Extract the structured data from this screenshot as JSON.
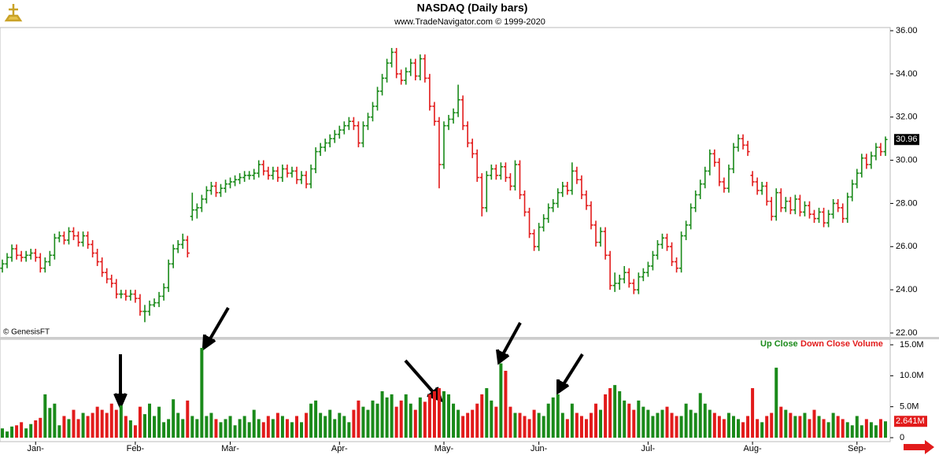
{
  "chart_data": {
    "type": "ohlc",
    "title": "NASDAQ  (Daily bars)",
    "subtitle": "www.TradeNavigator.com © 1999-2020",
    "watermark": "© GenesisFT",
    "up_color": "#1a8a1a",
    "down_color": "#e21b1b",
    "legend": [
      "Up Close",
      "Down Close",
      "Volume"
    ],
    "ylim": [
      22,
      36
    ],
    "yticks": [
      {
        "value": 22,
        "label": "22.00"
      },
      {
        "value": 24,
        "label": "24.00"
      },
      {
        "value": 26,
        "label": "26.00"
      },
      {
        "value": 28,
        "label": "28.00"
      },
      {
        "value": 30,
        "label": "30.00"
      },
      {
        "value": 32,
        "label": "32.00"
      },
      {
        "value": 34,
        "label": "34.00"
      },
      {
        "value": 36,
        "label": "36.00"
      }
    ],
    "last_price_label": "30.96",
    "y2lim": [
      0,
      15
    ],
    "y2ticks": [
      {
        "value": 0,
        "label": "0"
      },
      {
        "value": 5,
        "label": "5.0M"
      },
      {
        "value": 10,
        "label": "10.0M"
      },
      {
        "value": 15,
        "label": "15.0M"
      }
    ],
    "last_volume_label": "2.641M",
    "xticks": [
      {
        "value": 7,
        "label": "Jan-"
      },
      {
        "value": 28,
        "label": "Feb-"
      },
      {
        "value": 48,
        "label": "Mar-"
      },
      {
        "value": 71,
        "label": "Apr-"
      },
      {
        "value": 93,
        "label": "May-"
      },
      {
        "value": 113,
        "label": "Jun-"
      },
      {
        "value": 136,
        "label": "Jul-"
      },
      {
        "value": 158,
        "label": "Aug-"
      },
      {
        "value": 180,
        "label": "Sep-"
      }
    ],
    "bars": [
      [
        25.0,
        25.4,
        24.8,
        25.2
      ],
      [
        25.2,
        25.7,
        25.0,
        25.5
      ],
      [
        25.5,
        26.1,
        25.3,
        25.9
      ],
      [
        25.9,
        26.1,
        25.4,
        25.6
      ],
      [
        25.6,
        25.8,
        25.3,
        25.5
      ],
      [
        25.5,
        25.8,
        25.3,
        25.6
      ],
      [
        25.6,
        25.9,
        25.4,
        25.7
      ],
      [
        25.7,
        25.9,
        25.3,
        25.5
      ],
      [
        25.5,
        25.7,
        24.8,
        25.0
      ],
      [
        25.0,
        25.5,
        24.8,
        25.3
      ],
      [
        25.3,
        25.8,
        25.1,
        25.6
      ],
      [
        25.6,
        26.6,
        25.4,
        26.4
      ],
      [
        26.4,
        26.7,
        26.2,
        26.5
      ],
      [
        26.5,
        26.7,
        26.1,
        26.3
      ],
      [
        26.3,
        26.9,
        26.1,
        26.7
      ],
      [
        26.7,
        26.9,
        26.3,
        26.5
      ],
      [
        26.5,
        26.7,
        26.0,
        26.2
      ],
      [
        26.2,
        26.7,
        26.0,
        26.5
      ],
      [
        26.5,
        26.7,
        25.9,
        26.1
      ],
      [
        26.1,
        26.3,
        25.5,
        25.7
      ],
      [
        25.7,
        25.9,
        25.1,
        25.3
      ],
      [
        25.3,
        25.5,
        24.6,
        24.8
      ],
      [
        24.8,
        25.0,
        24.3,
        24.5
      ],
      [
        24.5,
        24.7,
        24.1,
        24.3
      ],
      [
        24.3,
        24.5,
        23.6,
        23.8
      ],
      [
        23.8,
        24.0,
        23.6,
        23.8
      ],
      [
        23.8,
        24.0,
        23.5,
        23.7
      ],
      [
        23.7,
        24.0,
        23.5,
        23.8
      ],
      [
        23.8,
        24.0,
        23.4,
        23.6
      ],
      [
        23.6,
        23.8,
        22.8,
        23.0
      ],
      [
        23.0,
        23.3,
        22.5,
        23.0
      ],
      [
        23.0,
        23.5,
        22.8,
        23.3
      ],
      [
        23.3,
        23.6,
        23.2,
        23.4
      ],
      [
        23.4,
        23.9,
        23.2,
        23.7
      ],
      [
        23.7,
        24.3,
        23.5,
        24.1
      ],
      [
        24.1,
        25.4,
        23.9,
        25.2
      ],
      [
        25.2,
        26.1,
        25.0,
        25.9
      ],
      [
        25.9,
        26.3,
        25.7,
        26.1
      ],
      [
        26.1,
        26.6,
        25.9,
        26.3
      ],
      [
        26.3,
        26.5,
        25.5,
        25.7
      ],
      [
        27.4,
        28.5,
        27.2,
        27.7
      ],
      [
        27.7,
        28.0,
        27.3,
        27.8
      ],
      [
        27.8,
        28.4,
        27.6,
        28.2
      ],
      [
        28.2,
        28.8,
        28.0,
        28.6
      ],
      [
        28.6,
        29.0,
        28.4,
        28.8
      ],
      [
        28.8,
        29.0,
        28.3,
        28.5
      ],
      [
        28.5,
        28.9,
        28.3,
        28.7
      ],
      [
        28.7,
        29.1,
        28.5,
        28.9
      ],
      [
        28.9,
        29.2,
        28.7,
        29.0
      ],
      [
        29.0,
        29.3,
        28.8,
        29.1
      ],
      [
        29.1,
        29.4,
        28.9,
        29.2
      ],
      [
        29.2,
        29.5,
        29.0,
        29.3
      ],
      [
        29.3,
        29.5,
        29.1,
        29.3
      ],
      [
        29.3,
        29.6,
        29.1,
        29.4
      ],
      [
        29.4,
        30.0,
        29.2,
        29.8
      ],
      [
        29.8,
        30.0,
        29.3,
        29.5
      ],
      [
        29.5,
        29.7,
        29.1,
        29.3
      ],
      [
        29.3,
        29.7,
        29.1,
        29.5
      ],
      [
        29.5,
        29.7,
        29.0,
        29.2
      ],
      [
        29.2,
        29.8,
        29.0,
        29.6
      ],
      [
        29.6,
        29.8,
        29.2,
        29.4
      ],
      [
        29.4,
        29.7,
        29.2,
        29.5
      ],
      [
        29.5,
        29.7,
        28.9,
        29.1
      ],
      [
        29.1,
        29.5,
        28.9,
        29.3
      ],
      [
        29.3,
        29.5,
        28.7,
        28.9
      ],
      [
        28.9,
        29.8,
        28.7,
        29.6
      ],
      [
        29.6,
        30.6,
        29.4,
        30.4
      ],
      [
        30.4,
        30.8,
        30.2,
        30.6
      ],
      [
        30.6,
        31.0,
        30.4,
        30.8
      ],
      [
        30.8,
        31.2,
        30.6,
        31.0
      ],
      [
        31.0,
        31.4,
        30.8,
        31.2
      ],
      [
        31.2,
        31.6,
        31.0,
        31.4
      ],
      [
        31.4,
        31.8,
        31.2,
        31.6
      ],
      [
        31.6,
        32.0,
        31.4,
        31.8
      ],
      [
        31.8,
        32.0,
        31.4,
        31.6
      ],
      [
        31.6,
        31.8,
        30.6,
        30.8
      ],
      [
        30.8,
        31.8,
        30.6,
        31.6
      ],
      [
        31.6,
        32.2,
        31.4,
        32.0
      ],
      [
        32.0,
        32.7,
        31.8,
        32.5
      ],
      [
        32.5,
        33.4,
        32.3,
        33.2
      ],
      [
        33.2,
        34.0,
        33.0,
        33.8
      ],
      [
        33.8,
        34.7,
        33.6,
        34.5
      ],
      [
        34.5,
        35.2,
        34.3,
        35.0
      ],
      [
        35.0,
        35.2,
        33.8,
        34.0
      ],
      [
        34.0,
        34.2,
        33.5,
        33.7
      ],
      [
        33.7,
        34.3,
        33.5,
        34.1
      ],
      [
        34.1,
        34.7,
        33.9,
        34.5
      ],
      [
        34.5,
        34.7,
        33.7,
        33.9
      ],
      [
        33.9,
        34.9,
        33.7,
        34.7
      ],
      [
        34.7,
        34.9,
        33.6,
        33.8
      ],
      [
        33.8,
        34.0,
        32.3,
        32.5
      ],
      [
        32.5,
        32.7,
        31.6,
        31.8
      ],
      [
        31.8,
        32.0,
        28.7,
        29.8
      ],
      [
        29.8,
        31.8,
        29.6,
        31.6
      ],
      [
        31.6,
        32.1,
        31.4,
        31.9
      ],
      [
        31.9,
        32.4,
        31.7,
        32.2
      ],
      [
        32.2,
        33.5,
        32.0,
        32.8
      ],
      [
        32.8,
        33.0,
        31.4,
        31.6
      ],
      [
        31.6,
        31.8,
        30.6,
        30.8
      ],
      [
        30.8,
        31.0,
        30.1,
        30.3
      ],
      [
        30.3,
        30.5,
        29.0,
        29.2
      ],
      [
        29.2,
        29.4,
        27.4,
        27.8
      ],
      [
        27.8,
        29.5,
        27.6,
        29.3
      ],
      [
        29.3,
        29.8,
        29.1,
        29.6
      ],
      [
        29.6,
        29.8,
        29.1,
        29.3
      ],
      [
        29.3,
        29.9,
        29.1,
        29.7
      ],
      [
        29.7,
        29.9,
        29.0,
        29.2
      ],
      [
        29.2,
        29.4,
        28.6,
        28.8
      ],
      [
        28.8,
        30.0,
        28.6,
        29.8
      ],
      [
        29.8,
        30.0,
        28.2,
        28.4
      ],
      [
        28.4,
        28.6,
        27.4,
        27.6
      ],
      [
        27.6,
        27.8,
        26.4,
        26.6
      ],
      [
        26.6,
        26.8,
        25.8,
        26.0
      ],
      [
        26.0,
        27.1,
        25.8,
        26.9
      ],
      [
        26.9,
        27.5,
        26.7,
        27.3
      ],
      [
        27.3,
        28.0,
        27.1,
        27.8
      ],
      [
        27.8,
        28.2,
        27.6,
        28.0
      ],
      [
        28.0,
        28.7,
        27.8,
        28.5
      ],
      [
        28.5,
        29.0,
        28.3,
        28.8
      ],
      [
        28.8,
        29.0,
        28.4,
        28.6
      ],
      [
        28.6,
        29.9,
        28.4,
        29.5
      ],
      [
        29.5,
        29.7,
        28.9,
        29.1
      ],
      [
        29.1,
        29.3,
        28.2,
        28.4
      ],
      [
        28.4,
        28.6,
        27.7,
        27.9
      ],
      [
        27.9,
        28.1,
        26.8,
        27.0
      ],
      [
        27.0,
        27.2,
        26.0,
        26.2
      ],
      [
        26.2,
        26.9,
        26.0,
        26.7
      ],
      [
        26.7,
        26.9,
        25.4,
        25.6
      ],
      [
        25.6,
        25.8,
        24.0,
        24.2
      ],
      [
        24.2,
        24.8,
        23.9,
        24.3
      ],
      [
        24.3,
        24.7,
        24.0,
        24.5
      ],
      [
        24.5,
        25.1,
        24.3,
        24.8
      ],
      [
        24.8,
        25.0,
        24.1,
        24.3
      ],
      [
        24.3,
        24.5,
        23.8,
        24.0
      ],
      [
        24.0,
        24.8,
        23.8,
        24.6
      ],
      [
        24.6,
        25.0,
        24.4,
        24.8
      ],
      [
        24.8,
        25.3,
        24.6,
        25.1
      ],
      [
        25.1,
        25.8,
        24.9,
        25.6
      ],
      [
        25.6,
        26.3,
        25.4,
        26.1
      ],
      [
        26.1,
        26.6,
        25.9,
        26.4
      ],
      [
        26.4,
        26.6,
        25.8,
        26.0
      ],
      [
        26.0,
        26.2,
        25.1,
        25.3
      ],
      [
        25.3,
        25.5,
        24.8,
        25.0
      ],
      [
        25.0,
        26.7,
        24.8,
        26.5
      ],
      [
        26.5,
        27.2,
        26.3,
        27.0
      ],
      [
        27.0,
        28.0,
        26.8,
        27.8
      ],
      [
        27.8,
        28.6,
        27.6,
        28.4
      ],
      [
        28.4,
        29.1,
        28.2,
        28.9
      ],
      [
        28.9,
        29.7,
        28.7,
        29.5
      ],
      [
        29.5,
        30.5,
        29.3,
        30.3
      ],
      [
        30.3,
        30.5,
        29.7,
        29.9
      ],
      [
        29.9,
        30.1,
        28.8,
        29.0
      ],
      [
        29.0,
        29.2,
        28.5,
        28.7
      ],
      [
        28.7,
        29.8,
        28.5,
        29.6
      ],
      [
        29.6,
        30.8,
        29.4,
        30.6
      ],
      [
        30.6,
        31.2,
        30.4,
        31.0
      ],
      [
        31.0,
        31.2,
        30.5,
        30.7
      ],
      [
        30.7,
        30.9,
        30.2,
        30.4
      ],
      [
        29.3,
        29.5,
        28.8,
        29.0
      ],
      [
        29.0,
        29.2,
        28.4,
        28.6
      ],
      [
        28.6,
        29.0,
        28.4,
        28.8
      ],
      [
        28.8,
        29.0,
        27.9,
        28.1
      ],
      [
        28.1,
        28.3,
        27.2,
        27.4
      ],
      [
        27.4,
        28.7,
        27.2,
        28.5
      ],
      [
        28.5,
        28.7,
        27.6,
        27.8
      ],
      [
        27.8,
        28.3,
        27.6,
        28.1
      ],
      [
        28.1,
        28.3,
        27.5,
        27.7
      ],
      [
        27.7,
        28.4,
        27.5,
        28.2
      ],
      [
        28.2,
        28.4,
        27.4,
        27.6
      ],
      [
        27.6,
        28.1,
        27.4,
        27.9
      ],
      [
        27.9,
        28.1,
        27.3,
        27.5
      ],
      [
        27.5,
        27.7,
        27.1,
        27.3
      ],
      [
        27.3,
        27.8,
        27.1,
        27.6
      ],
      [
        27.6,
        27.8,
        26.9,
        27.1
      ],
      [
        27.1,
        27.7,
        26.9,
        27.5
      ],
      [
        27.5,
        28.2,
        27.3,
        28.0
      ],
      [
        28.0,
        28.2,
        27.6,
        27.8
      ],
      [
        27.8,
        28.0,
        27.1,
        27.3
      ],
      [
        27.3,
        28.5,
        27.1,
        28.3
      ],
      [
        28.3,
        29.1,
        28.1,
        28.9
      ],
      [
        28.9,
        29.6,
        28.7,
        29.4
      ],
      [
        29.4,
        30.3,
        29.2,
        30.1
      ],
      [
        30.1,
        30.3,
        29.6,
        29.8
      ],
      [
        29.8,
        30.4,
        29.6,
        30.2
      ],
      [
        30.2,
        30.8,
        30.0,
        30.6
      ],
      [
        30.6,
        30.8,
        30.2,
        30.4
      ],
      [
        30.4,
        31.1,
        30.2,
        30.96
      ]
    ],
    "volume": [
      1.5,
      1.0,
      1.8,
      2.0,
      2.5,
      1.5,
      2.2,
      2.8,
      3.2,
      7.0,
      4.8,
      5.5,
      2.0,
      3.5,
      3.0,
      4.5,
      3.0,
      4.0,
      3.5,
      4.0,
      5.0,
      4.5,
      4.0,
      5.5,
      4.5,
      5.2,
      3.5,
      2.8,
      2.0,
      5.0,
      3.8,
      5.5,
      3.5,
      5.0,
      2.5,
      3.0,
      6.2,
      4.0,
      3.0,
      6.0,
      3.5,
      3.0,
      14.5,
      3.5,
      4.0,
      3.0,
      2.5,
      3.0,
      3.5,
      2.0,
      3.0,
      3.5,
      2.5,
      4.5,
      3.0,
      2.5,
      3.5,
      3.0,
      4.0,
      3.5,
      3.0,
      2.5,
      3.5,
      2.5,
      4.0,
      5.5,
      6.0,
      4.0,
      3.5,
      4.5,
      3.0,
      4.0,
      3.5,
      2.5,
      4.5,
      6.0,
      5.0,
      4.5,
      6.0,
      5.5,
      7.5,
      6.5,
      7.0,
      5.0,
      6.0,
      7.0,
      5.5,
      4.5,
      6.5,
      5.8,
      7.0,
      7.5,
      8.0,
      7.5,
      7.0,
      5.5,
      4.5,
      3.5,
      4.0,
      4.5,
      5.5,
      7.0,
      8.0,
      6.0,
      5.0,
      12.0,
      10.8,
      5.0,
      4.0,
      4.0,
      3.5,
      3.0,
      4.5,
      4.0,
      3.5,
      5.5,
      6.5,
      7.0,
      4.0,
      3.0,
      5.5,
      4.0,
      3.5,
      3.0,
      4.0,
      5.5,
      4.5,
      7.0,
      8.0,
      8.5,
      7.5,
      6.0,
      5.5,
      4.5,
      6.0,
      5.0,
      4.5,
      3.5,
      4.0,
      4.5,
      5.0,
      4.0,
      3.5,
      3.5,
      5.5,
      4.5,
      4.0,
      7.2,
      5.5,
      4.5,
      4.0,
      3.5,
      3.0,
      4.0,
      3.5,
      3.0,
      2.5,
      3.5,
      8.0,
      3.0,
      2.5,
      3.5,
      4.0,
      11.3,
      5.0,
      4.5,
      4.0,
      3.5,
      3.5,
      4.0,
      3.0,
      4.5,
      3.5,
      3.0,
      2.5,
      4.0,
      3.5,
      3.0,
      2.5,
      2.0,
      3.5,
      2.0,
      3.0,
      2.5,
      2.0,
      3.0,
      2.641
    ]
  }
}
